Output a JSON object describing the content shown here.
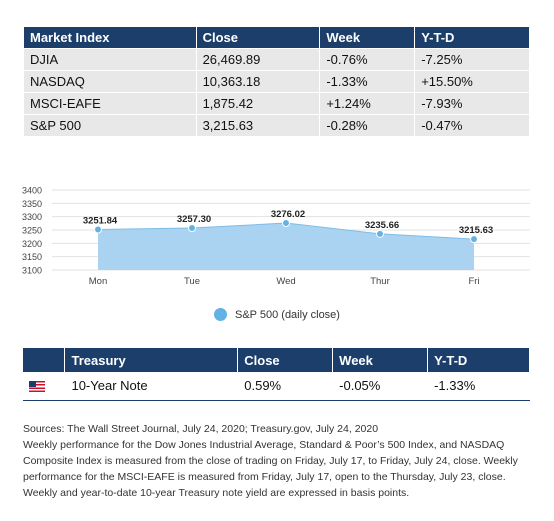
{
  "market_table": {
    "headers": [
      "Market Index",
      "Close",
      "Week",
      "Y-T-D"
    ],
    "rows": [
      [
        "DJIA",
        "26,469.89",
        "-0.76%",
        "-7.25%"
      ],
      [
        "NASDAQ",
        "10,363.18",
        "-1.33%",
        "+15.50%"
      ],
      [
        "MSCI-EAFE",
        "1,875.42",
        "+1.24%",
        "-7.93%"
      ],
      [
        "S&P 500",
        "3,215.63",
        "-0.28%",
        "-0.47%"
      ]
    ]
  },
  "chart_data": {
    "type": "area",
    "categories": [
      "Mon",
      "Tue",
      "Wed",
      "Thur",
      "Fri"
    ],
    "series": [
      {
        "name": "S&P 500 (daily close)",
        "values": [
          3251.84,
          3257.3,
          3276.02,
          3235.66,
          3215.63
        ]
      }
    ],
    "data_labels": [
      "3251.84",
      "3257.30",
      "3276.02",
      "3235.66",
      "3215.63"
    ],
    "y_ticks": [
      "3100",
      "3150",
      "3200",
      "3250",
      "3300",
      "3350",
      "3400"
    ],
    "ylim": [
      3100,
      3400
    ],
    "grid": true,
    "legend_position": "bottom-center",
    "fill_color": "#a9d3f0",
    "line_color": "#7fbde6",
    "marker_color": "#63b2e4"
  },
  "legend": {
    "label": "S&P 500 (daily close)"
  },
  "treasury_table": {
    "headers": [
      "",
      "Treasury",
      "Close",
      "Week",
      "Y-T-D"
    ],
    "row": {
      "flag": "us-flag-icon",
      "name": "10-Year Note",
      "close": "0.59%",
      "week": "-0.05%",
      "ytd": "-1.33%"
    }
  },
  "notes": {
    "source": "Sources: The Wall Street Journal, July 24, 2020; Treasury.gov, July 24, 2020",
    "body": "Weekly performance for the Dow Jones Industrial Average, Standard & Poor’s 500 Index, and NASDAQ Composite Index is measured from the close of trading on Friday, July 17, to Friday, July 24, close. Weekly performance for the MSCI-EAFE is measured from Friday, July 17, open to the Thursday, July 23, close. Weekly and year-to-date 10-year Treasury note yield are expressed in basis points."
  }
}
